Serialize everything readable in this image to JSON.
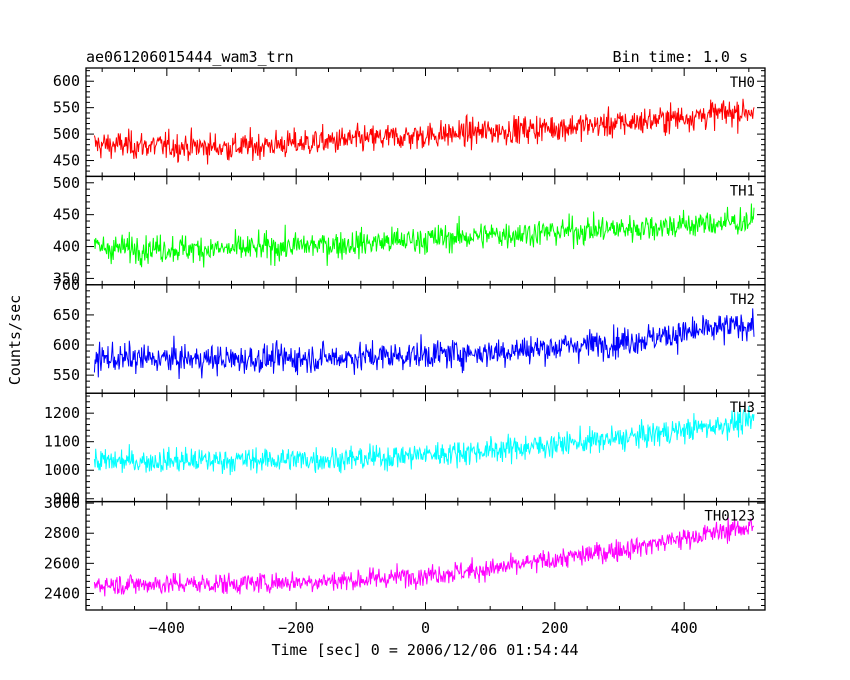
{
  "chart_data": {
    "type": "line",
    "title": "ae061206015444_wam3_trn",
    "subtitle": "Bin time: 1.0 s",
    "xlabel": "Time [sec] 0 = 2006/12/06 01:54:44",
    "ylabel": "Counts/sec",
    "xlim": [
      -525,
      525
    ],
    "x_ticks": [
      -400,
      -200,
      0,
      200,
      400
    ],
    "x_tick_labels": [
      "−400",
      "−200",
      "0",
      "200",
      "400"
    ],
    "x_range": [
      -512,
      508
    ],
    "grid": false,
    "legend": "none",
    "panels": [
      {
        "name": "TH0",
        "color": "#ff0000",
        "ylim": [
          420,
          625
        ],
        "y_ticks": [
          450,
          500,
          550,
          600
        ],
        "trend_x": [
          -512,
          -300,
          -100,
          100,
          300,
          508
        ],
        "trend_y": [
          480,
          475,
          490,
          505,
          520,
          545
        ],
        "noise": 24
      },
      {
        "name": "TH1",
        "color": "#00ff00",
        "ylim": [
          340,
          510
        ],
        "y_ticks": [
          350,
          400,
          450,
          500
        ],
        "trend_x": [
          -512,
          -300,
          -100,
          100,
          300,
          508
        ],
        "trend_y": [
          398,
          396,
          405,
          418,
          428,
          440
        ],
        "noise": 20
      },
      {
        "name": "TH2",
        "color": "#0000ff",
        "ylim": [
          520,
          700
        ],
        "y_ticks": [
          550,
          600,
          650,
          700
        ],
        "trend_x": [
          -512,
          -300,
          -100,
          100,
          300,
          508
        ],
        "trend_y": [
          578,
          576,
          580,
          588,
          605,
          635
        ],
        "noise": 22
      },
      {
        "name": "TH3",
        "color": "#00ffff",
        "ylim": [
          890,
          1270
        ],
        "y_ticks": [
          900,
          1000,
          1100,
          1200
        ],
        "trend_x": [
          -512,
          -300,
          -100,
          100,
          300,
          508
        ],
        "trend_y": [
          1030,
          1035,
          1040,
          1070,
          1110,
          1175
        ],
        "noise": 40
      },
      {
        "name": "TH0123",
        "color": "#ff00ff",
        "ylim": [
          2290,
          3010
        ],
        "y_ticks": [
          2400,
          2600,
          2800,
          3000
        ],
        "trend_x": [
          -512,
          -300,
          -100,
          100,
          300,
          508
        ],
        "trend_y": [
          2460,
          2465,
          2490,
          2560,
          2690,
          2850
        ],
        "noise": 65
      }
    ]
  }
}
